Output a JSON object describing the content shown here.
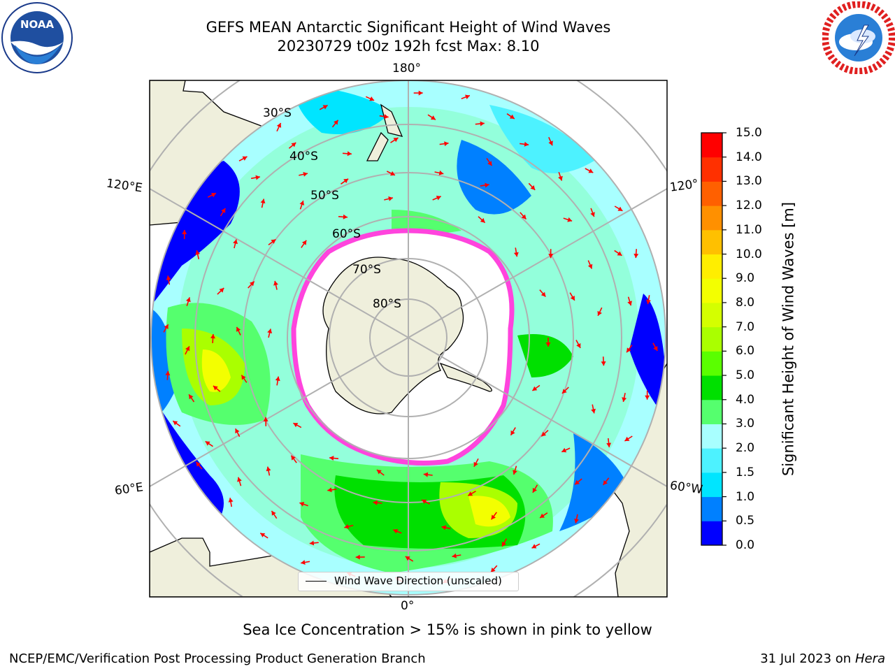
{
  "header": {
    "title_line1": "GEFS MEAN Antarctic Significant Height of Wind Waves",
    "title_line2": "20230729 t00z 192h fcst   Max: 8.10"
  },
  "logos": {
    "left": "NOAA",
    "right": "NATIONAL WEATHER SERVICE"
  },
  "map": {
    "projection": "south-polar-stereographic",
    "longitude_labels": [
      "180°",
      "120°E",
      "120°",
      "60°E",
      "60°W",
      "0°"
    ],
    "latitude_labels": [
      "30°S",
      "40°S",
      "50°S",
      "60°S",
      "70°S",
      "80°S"
    ],
    "legend_label": "Wind Wave Direction (unscaled)",
    "colors": {
      "land": "#efefdc",
      "ice": "#ffffff",
      "ice_edge": "#ff44dd",
      "graticule": "#b0b0b0",
      "arrow": "#ff0000"
    }
  },
  "colorbar": {
    "label": "Significant Height of Wind Waves [m]",
    "ticks": [
      "0.0",
      "0.5",
      "1.0",
      "1.5",
      "2.0",
      "3.0",
      "4.0",
      "5.0",
      "6.0",
      "7.0",
      "8.0",
      "9.0",
      "10.0",
      "11.0",
      "12.0",
      "13.0",
      "14.0",
      "15.0"
    ],
    "colors": [
      "#0000ff",
      "#0080ff",
      "#00e5ff",
      "#4df2ff",
      "#a8ffff",
      "#55ff6e",
      "#00e000",
      "#5aff00",
      "#aaff00",
      "#d4ff00",
      "#f3ff00",
      "#ffee00",
      "#ffc000",
      "#ff9000",
      "#ff6000",
      "#ff3000",
      "#ff0000"
    ]
  },
  "footer": {
    "caption": "Sea Ice Concentration > 15% is shown in pink to yellow",
    "producer": "NCEP/EMC/Verification Post Processing Product Generation Branch",
    "date": "31 Jul 2023 on",
    "machine": "Hera"
  }
}
